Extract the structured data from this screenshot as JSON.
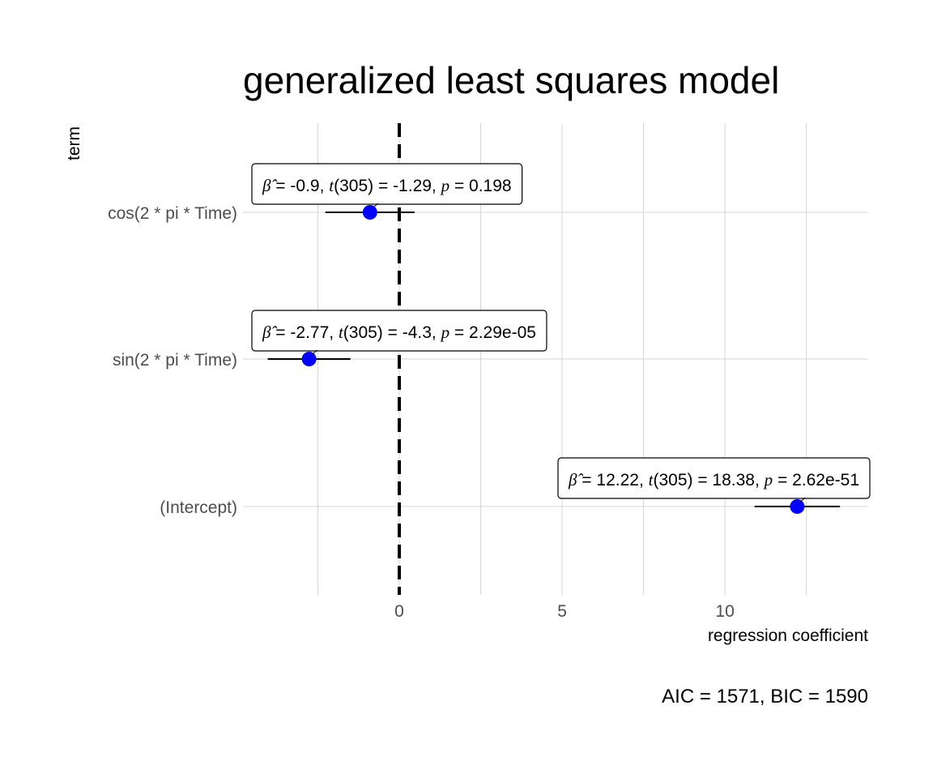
{
  "chart_data": {
    "type": "scatter",
    "title": "generalized least squares model",
    "xlabel": "regression coefficient",
    "ylabel": "term",
    "caption": "AIC = 1571, BIC = 1590",
    "xlim": [
      -4.8,
      14.4
    ],
    "x_ticks": [
      0,
      5,
      10
    ],
    "x_tick_labels": [
      "0",
      "5",
      "10"
    ],
    "grid": true,
    "reference_line": 0,
    "point_color": "#0000ff",
    "terms": [
      {
        "term": "cos(2 * pi * Time)",
        "estimate": -0.9,
        "conf_low": -2.27,
        "conf_high": 0.47,
        "label": {
          "beta": "-0.9",
          "t_df": "305",
          "t": "-1.29",
          "p": "0.198"
        }
      },
      {
        "term": "sin(2 * pi * Time)",
        "estimate": -2.77,
        "conf_low": -4.04,
        "conf_high": -1.5,
        "label": {
          "beta": "-2.77",
          "t_df": "305",
          "t": "-4.3",
          "p": "2.29e-05"
        }
      },
      {
        "term": "(Intercept)",
        "estimate": 12.22,
        "conf_low": 10.91,
        "conf_high": 13.53,
        "label": {
          "beta": "12.22",
          "t_df": "305",
          "t": "18.38",
          "p": "2.62e-51"
        }
      }
    ]
  }
}
